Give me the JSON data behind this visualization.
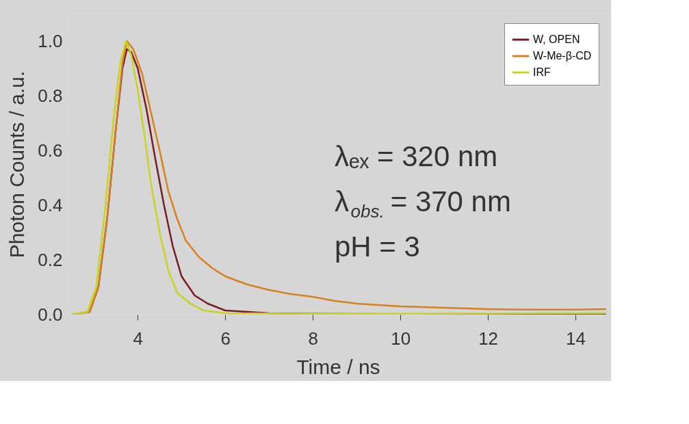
{
  "chart_data": {
    "type": "line",
    "xlabel": "Time / ns",
    "ylabel": "Photon Counts / a.u.",
    "xlim": [
      2.4,
      14.75
    ],
    "ylim": [
      0,
      1.1
    ],
    "xticks": [
      4,
      6,
      8,
      10,
      12,
      14
    ],
    "yticks": [
      {
        "value": 0,
        "label": "0.0"
      },
      {
        "value": 0.2,
        "label": "0.2"
      },
      {
        "value": 0.4,
        "label": "0.4"
      },
      {
        "value": 0.6,
        "label": "0.6"
      },
      {
        "value": 0.8,
        "label": "0.8"
      },
      {
        "value": 1,
        "label": "1.0"
      }
    ],
    "grid": false,
    "legend": "top right",
    "marker": "none",
    "line_style": "solid",
    "annotations": [
      "λₑₓ = 320 nm",
      "λ$_{obs.}$ = 370 nm",
      "pH = 3"
    ],
    "series": [
      {
        "name": "W, OPEN",
        "color": "#7a1a22",
        "x": [
          2.5,
          2.9,
          3.1,
          3.3,
          3.5,
          3.65,
          3.75,
          3.85,
          4.0,
          4.2,
          4.4,
          4.6,
          4.8,
          5.0,
          5.3,
          5.6,
          6.0,
          7,
          8,
          10,
          12,
          14.7
        ],
        "values": [
          0,
          0.01,
          0.1,
          0.35,
          0.68,
          0.9,
          0.97,
          0.96,
          0.9,
          0.75,
          0.57,
          0.4,
          0.25,
          0.14,
          0.07,
          0.04,
          0.015,
          0.005,
          0.003,
          0.002,
          0.002,
          0.002
        ]
      },
      {
        "name": "W-Me-β-CD",
        "color": "#d8801e",
        "x": [
          2.5,
          2.9,
          3.1,
          3.3,
          3.5,
          3.65,
          3.75,
          3.9,
          4.1,
          4.3,
          4.5,
          4.7,
          4.9,
          5.1,
          5.4,
          5.7,
          6.0,
          6.5,
          7,
          7.5,
          8,
          8.5,
          9,
          10,
          11,
          12,
          13,
          14,
          14.7
        ],
        "values": [
          0,
          0.01,
          0.1,
          0.35,
          0.68,
          0.92,
          1.0,
          0.97,
          0.88,
          0.74,
          0.6,
          0.45,
          0.35,
          0.27,
          0.21,
          0.17,
          0.14,
          0.11,
          0.09,
          0.075,
          0.065,
          0.05,
          0.04,
          0.03,
          0.025,
          0.02,
          0.018,
          0.018,
          0.02
        ]
      },
      {
        "name": "IRF",
        "color": "#c8d41e",
        "x": [
          2.5,
          2.85,
          3.05,
          3.25,
          3.45,
          3.6,
          3.73,
          3.85,
          4.0,
          4.15,
          4.3,
          4.5,
          4.7,
          4.9,
          5.2,
          5.5,
          6,
          8,
          10,
          12,
          14.7
        ],
        "values": [
          0,
          0.01,
          0.1,
          0.38,
          0.72,
          0.92,
          1.0,
          0.95,
          0.82,
          0.66,
          0.48,
          0.3,
          0.16,
          0.08,
          0.04,
          0.015,
          0.005,
          0.003,
          0.003,
          0.004,
          0.005
        ]
      }
    ]
  }
}
